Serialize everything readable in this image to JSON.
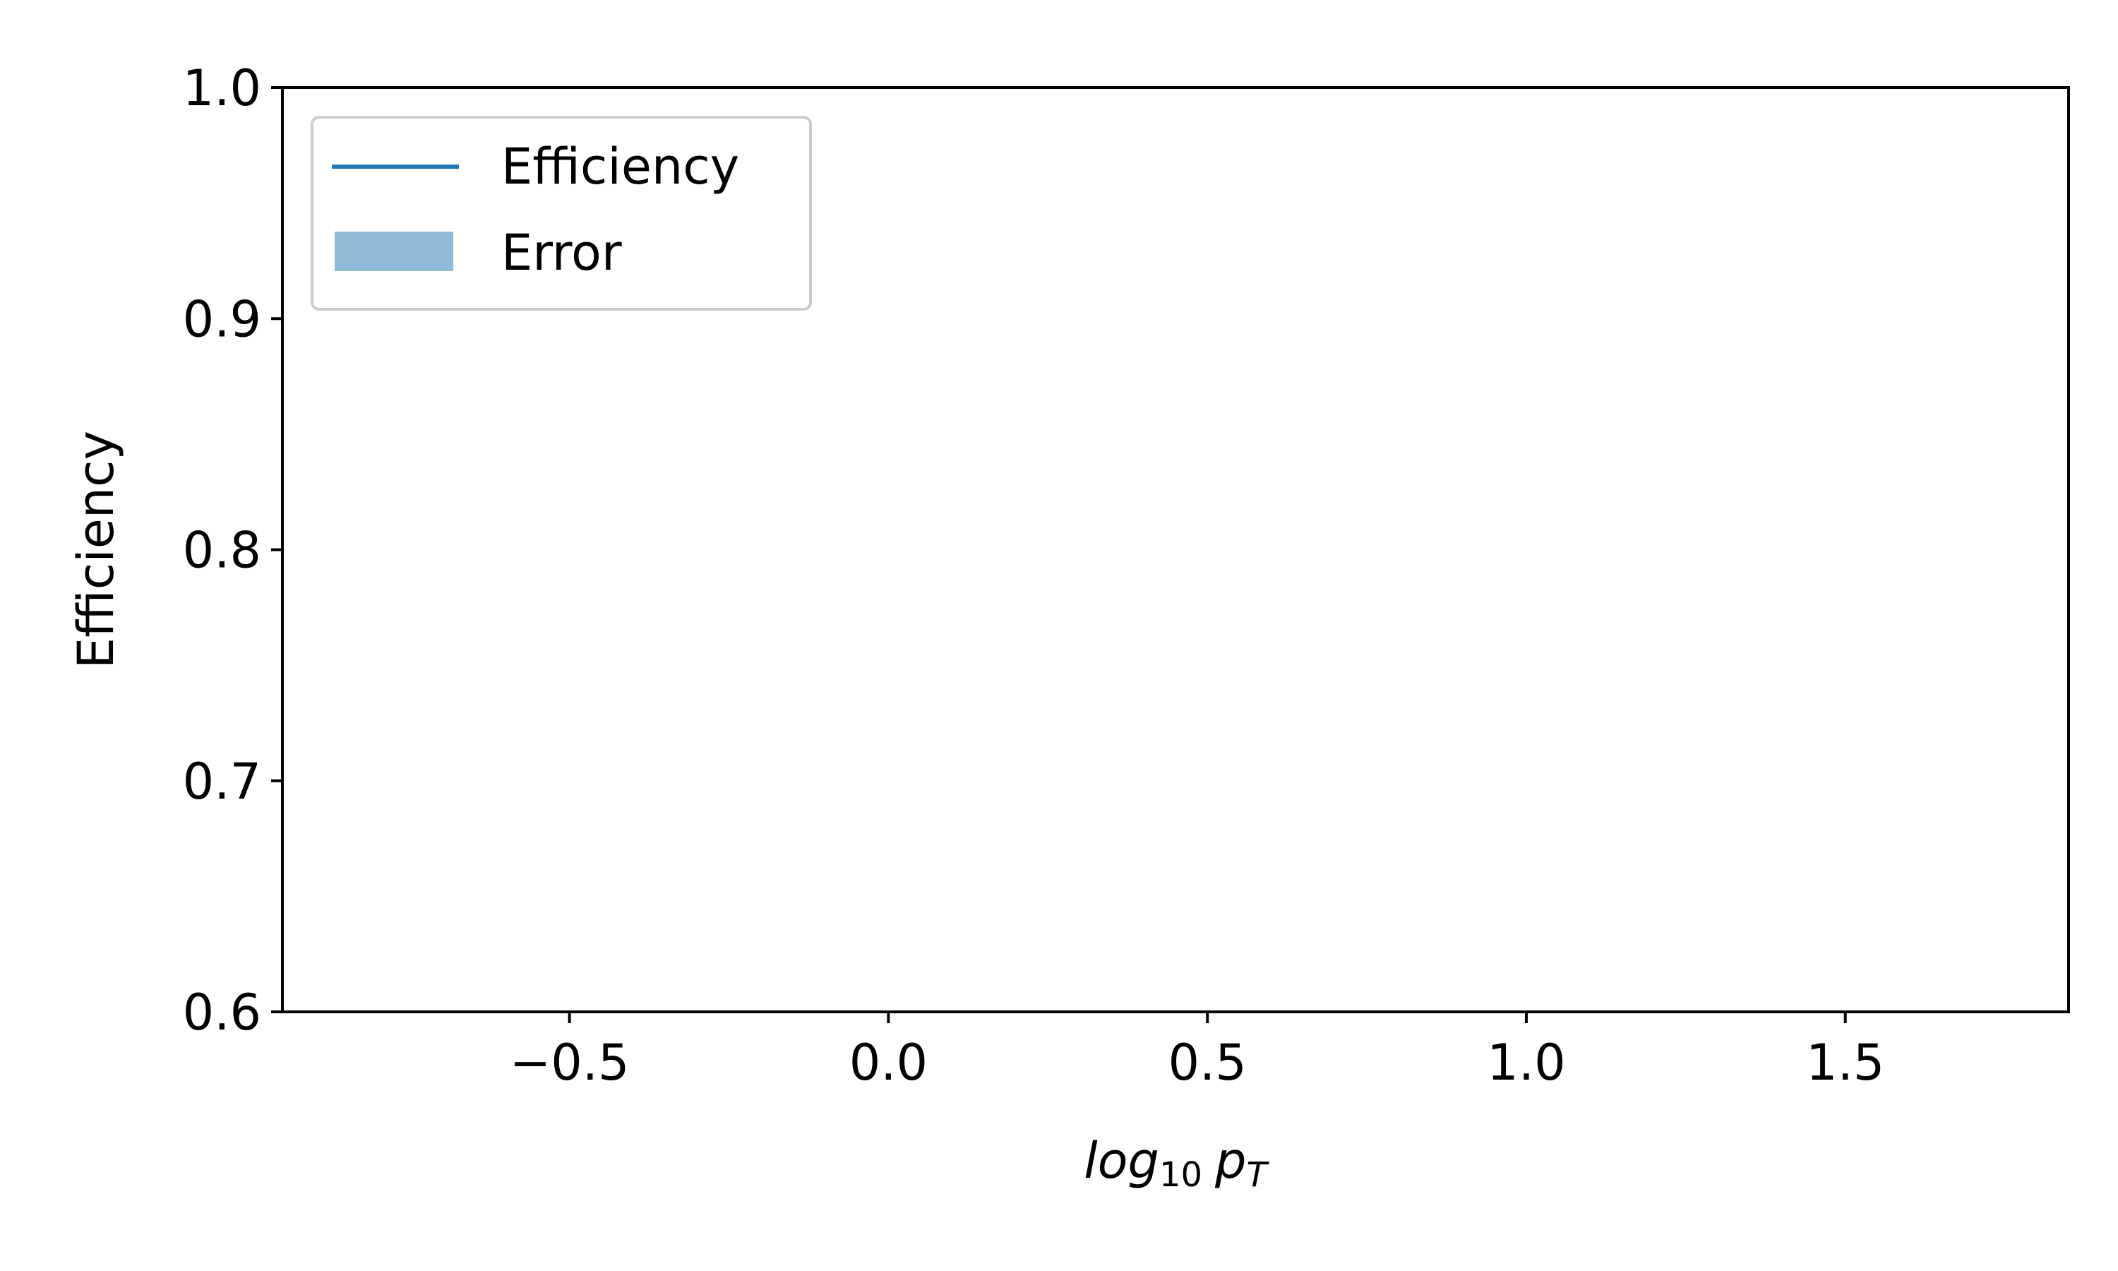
{
  "chart_data": {
    "type": "line",
    "title": "",
    "xlabel": {
      "base": "log",
      "base_sub": "10",
      "var": "p",
      "var_sub": "T"
    },
    "ylabel": "Efficiency",
    "xlim": [
      -0.95,
      1.85
    ],
    "ylim": [
      0.6,
      1.0
    ],
    "x_ticks": [
      -0.5,
      0.0,
      0.5,
      1.0,
      1.5
    ],
    "x_tick_labels": [
      "−0.5",
      "0.0",
      "0.5",
      "1.0",
      "1.5"
    ],
    "y_ticks": [
      0.6,
      0.7,
      0.8,
      0.9,
      1.0
    ],
    "y_tick_labels": [
      "0.6",
      "0.7",
      "0.8",
      "0.9",
      "1.0"
    ],
    "grid": false,
    "legend": {
      "placement": "top-left",
      "entries": [
        {
          "label": "Efficiency",
          "kind": "line",
          "color": "#1f77b4"
        },
        {
          "label": "Error",
          "kind": "band",
          "color": "#1f77b4",
          "opacity": 0.5
        }
      ]
    },
    "series": [
      {
        "name": "Efficiency",
        "x": [],
        "y": []
      }
    ],
    "error_band": {
      "name": "Error",
      "x": [],
      "lower": [],
      "upper": []
    }
  }
}
